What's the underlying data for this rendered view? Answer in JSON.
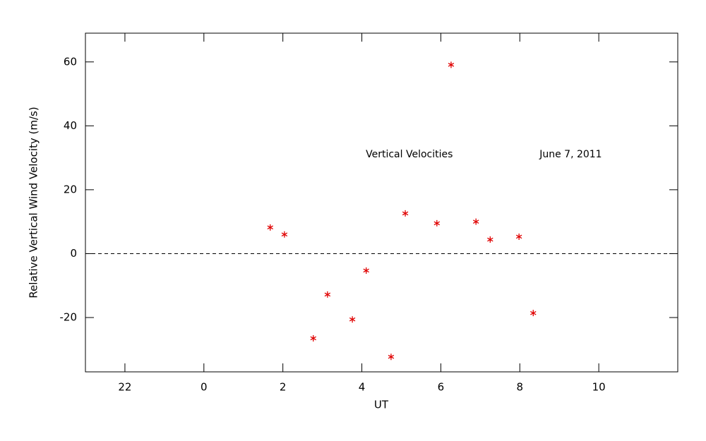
{
  "chart_data": {
    "type": "scatter",
    "xlabel": "UT",
    "ylabel": "Relative Vertical Wind Velocity (m/s)",
    "annotations": [
      {
        "text": "Vertical Velocities",
        "x": 4.1,
        "y": 31
      },
      {
        "text": "June 7, 2011",
        "x": 8.5,
        "y": 31
      }
    ],
    "series": [
      {
        "color": "#e00000",
        "x": [
          1.68,
          2.04,
          2.77,
          3.13,
          3.76,
          4.11,
          4.74,
          5.1,
          5.9,
          6.26,
          6.89,
          7.25,
          7.98,
          8.34
        ],
        "values": [
          8.2,
          6.0,
          -26.5,
          -12.8,
          -20.6,
          -5.3,
          -32.3,
          12.6,
          9.5,
          59.1,
          10.0,
          4.4,
          5.3,
          -18.6
        ]
      }
    ],
    "xlim": [
      -3,
      12
    ],
    "xticks": [
      {
        "value": -2,
        "label": "22"
      },
      0,
      2,
      4,
      6,
      8,
      10
    ],
    "ylim": [
      -37,
      69
    ],
    "yticks": [
      -20,
      0,
      20,
      40,
      60
    ],
    "hline": 0
  }
}
